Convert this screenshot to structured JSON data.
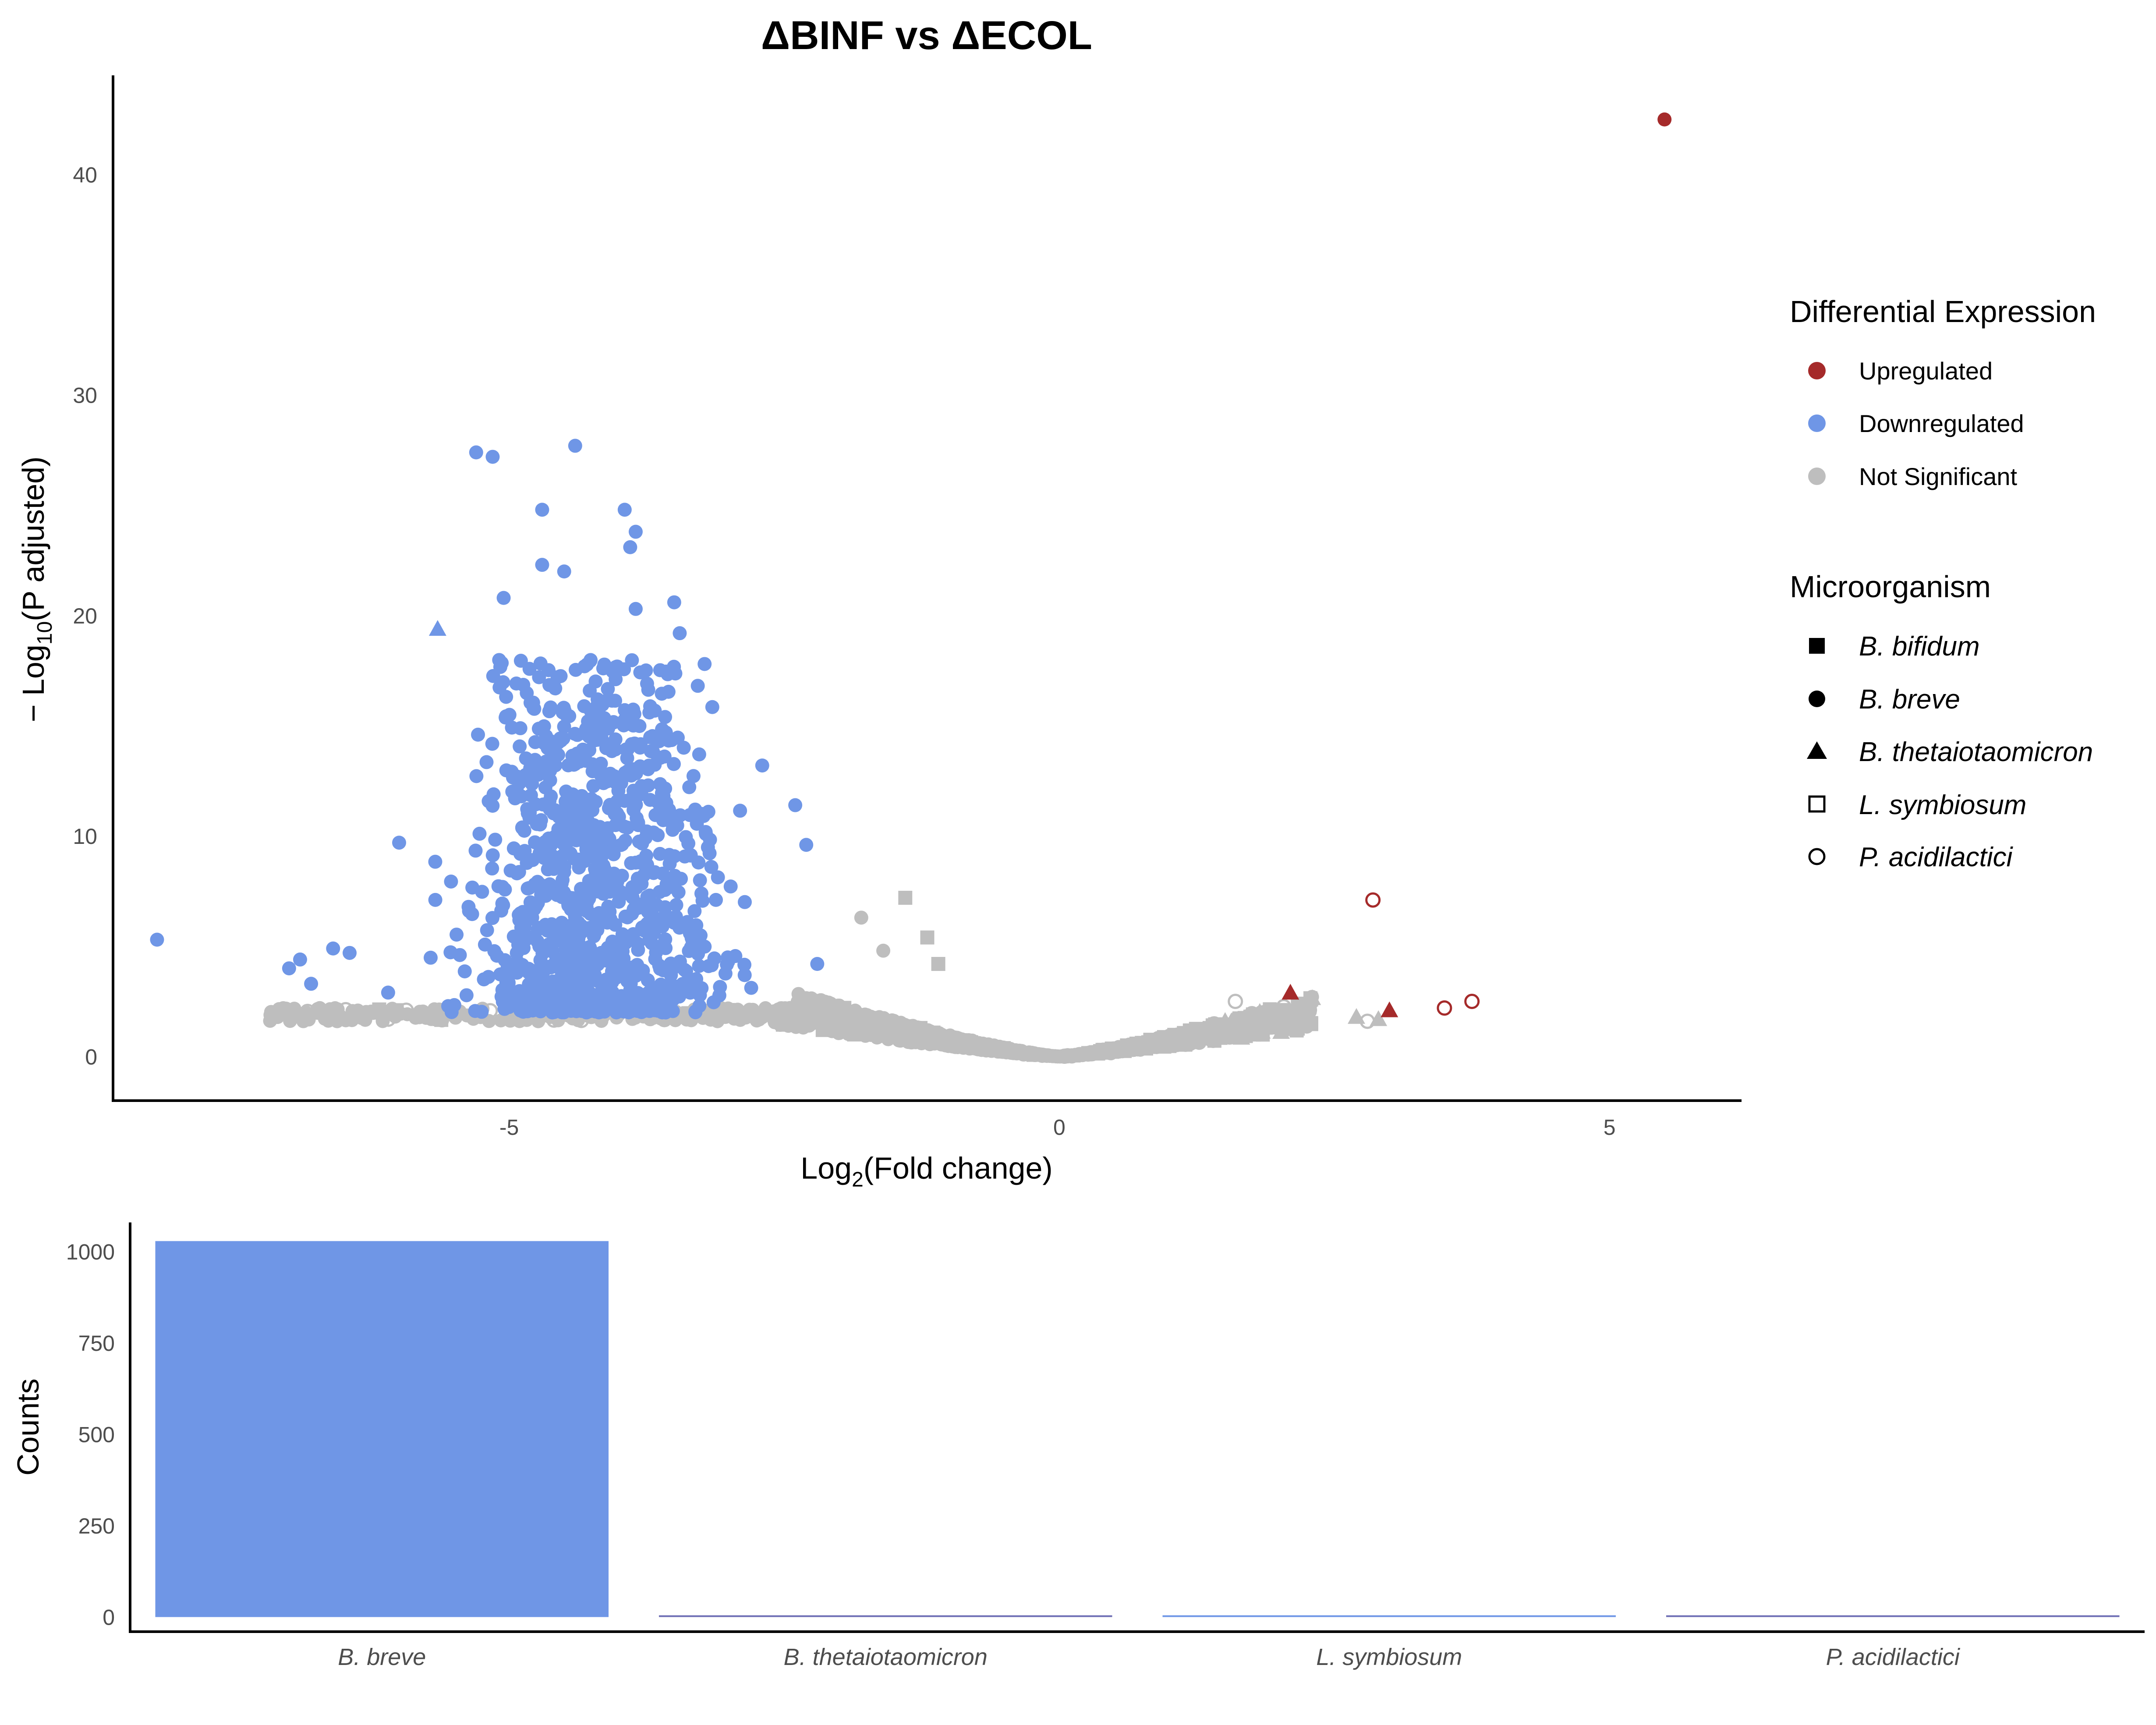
{
  "colors": {
    "upregulated": "#A52A2A",
    "downregulated": "#6F96E6",
    "not_significant": "#BEBEBE",
    "bar_secondary": "#6E6EB4"
  },
  "chart_data": [
    {
      "type": "scatter",
      "title": "ΔBINF vs ΔECOL",
      "xlabel": {
        "main": "Log",
        "sub": "2",
        "suffix": "(Fold change)"
      },
      "ylabel": {
        "prefix": "− Log",
        "sub": "10",
        "suffix": "(P adjusted)"
      },
      "xlim": [
        -8.6,
        6.2
      ],
      "ylim": [
        -2.0,
        44.5
      ],
      "x_ticks": [
        -5,
        0,
        5
      ],
      "y_ticks": [
        0,
        10,
        20,
        30,
        40
      ],
      "grid": false,
      "legend_position": "right",
      "legends": [
        {
          "title": "Differential Expression",
          "items": [
            {
              "label": "Upregulated",
              "color": "upregulated",
              "shape": "circle"
            },
            {
              "label": "Downregulated",
              "color": "downregulated",
              "shape": "circle"
            },
            {
              "label": "Not Significant",
              "color": "not_significant",
              "shape": "circle"
            }
          ]
        },
        {
          "title": "Microorganism",
          "items": [
            {
              "label": "B. bifidum",
              "shape": "square"
            },
            {
              "label": "B. breve",
              "shape": "circle"
            },
            {
              "label": "B. thetaiotaomicron",
              "shape": "triangle"
            },
            {
              "label": "L. symbiosum",
              "shape": "open-square"
            },
            {
              "label": "P. acidilactici",
              "shape": "open-circle"
            }
          ]
        }
      ],
      "series": [
        {
          "group": "Upregulated",
          "points": [
            {
              "x": 5.5,
              "y": 42.5,
              "shape": "circle"
            },
            {
              "x": 2.85,
              "y": 7.1,
              "shape": "open-circle"
            },
            {
              "x": 3.5,
              "y": 2.2,
              "shape": "open-circle"
            },
            {
              "x": 3.75,
              "y": 2.5,
              "shape": "open-circle"
            },
            {
              "x": 2.1,
              "y": 2.9,
              "shape": "triangle"
            },
            {
              "x": 3.0,
              "y": 2.1,
              "shape": "triangle"
            }
          ]
        },
        {
          "group": "Downregulated",
          "points": [
            {
              "x": -5.65,
              "y": 19.4,
              "shape": "triangle"
            },
            {
              "x": -8.2,
              "y": 5.3,
              "shape": "circle"
            },
            {
              "x": -7.0,
              "y": 4.0,
              "shape": "circle"
            },
            {
              "x": -6.9,
              "y": 4.4,
              "shape": "circle"
            },
            {
              "x": -6.8,
              "y": 3.3,
              "shape": "circle"
            },
            {
              "x": -6.6,
              "y": 4.9,
              "shape": "circle"
            },
            {
              "x": -6.45,
              "y": 4.7,
              "shape": "circle"
            },
            {
              "x": -5.3,
              "y": 27.4,
              "shape": "circle"
            },
            {
              "x": -5.15,
              "y": 27.2,
              "shape": "circle"
            },
            {
              "x": -4.4,
              "y": 27.7,
              "shape": "circle"
            },
            {
              "x": -4.7,
              "y": 24.8,
              "shape": "circle"
            },
            {
              "x": -3.95,
              "y": 24.8,
              "shape": "circle"
            },
            {
              "x": -3.85,
              "y": 23.8,
              "shape": "circle"
            },
            {
              "x": -3.9,
              "y": 23.1,
              "shape": "circle"
            },
            {
              "x": -4.7,
              "y": 22.3,
              "shape": "circle"
            },
            {
              "x": -4.5,
              "y": 22.0,
              "shape": "circle"
            },
            {
              "x": -3.5,
              "y": 20.6,
              "shape": "circle"
            },
            {
              "x": -5.05,
              "y": 20.8,
              "shape": "circle"
            },
            {
              "x": -3.85,
              "y": 20.3,
              "shape": "circle"
            },
            {
              "x": -3.45,
              "y": 19.2,
              "shape": "circle"
            },
            {
              "x": -6.0,
              "y": 9.7,
              "shape": "circle"
            },
            {
              "x": -6.1,
              "y": 2.9,
              "shape": "circle"
            },
            {
              "x": -2.7,
              "y": 13.2,
              "shape": "circle"
            },
            {
              "x": -2.4,
              "y": 11.4,
              "shape": "circle"
            },
            {
              "x": -2.3,
              "y": 9.6,
              "shape": "circle"
            },
            {
              "x": -2.2,
              "y": 4.2,
              "shape": "circle"
            }
          ],
          "cloud": {
            "approx_count": 1030,
            "x_center": -4.2,
            "x_spread": 0.75,
            "x_min": -6.1,
            "x_max": -2.0,
            "y_min": 2.0,
            "y_mode": 6.0,
            "y_max": 18.0
          }
        },
        {
          "group": "Not Significant",
          "points": [
            {
              "x": -1.8,
              "y": 6.3,
              "shape": "circle"
            },
            {
              "x": -1.6,
              "y": 4.8,
              "shape": "circle"
            },
            {
              "x": -1.4,
              "y": 7.2,
              "shape": "square"
            },
            {
              "x": -1.2,
              "y": 5.4,
              "shape": "square"
            },
            {
              "x": -1.1,
              "y": 4.2,
              "shape": "square"
            },
            {
              "x": 2.7,
              "y": 1.8,
              "shape": "triangle"
            },
            {
              "x": 2.9,
              "y": 1.7,
              "shape": "triangle"
            },
            {
              "x": 1.6,
              "y": 2.5,
              "shape": "open-circle"
            },
            {
              "x": 2.8,
              "y": 1.6,
              "shape": "open-circle"
            }
          ],
          "cloud": {
            "approx_count": 1400,
            "shape_rule": "volcano V: y ≈ 0.75·|x|^1.25 with scatter, x from -7.2 to 2.4"
          }
        }
      ]
    },
    {
      "type": "bar",
      "ylabel": "Counts",
      "ylim": [
        -40,
        1080
      ],
      "y_ticks": [
        0,
        250,
        500,
        750,
        1000
      ],
      "categories": [
        "B. breve",
        "B. thetaiotaomicron",
        "L. symbiosum",
        "P. acidilactici"
      ],
      "values": [
        1029,
        2,
        2,
        2
      ],
      "bar_colors": [
        "downregulated",
        "bar_secondary",
        "downregulated",
        "bar_secondary"
      ]
    }
  ]
}
